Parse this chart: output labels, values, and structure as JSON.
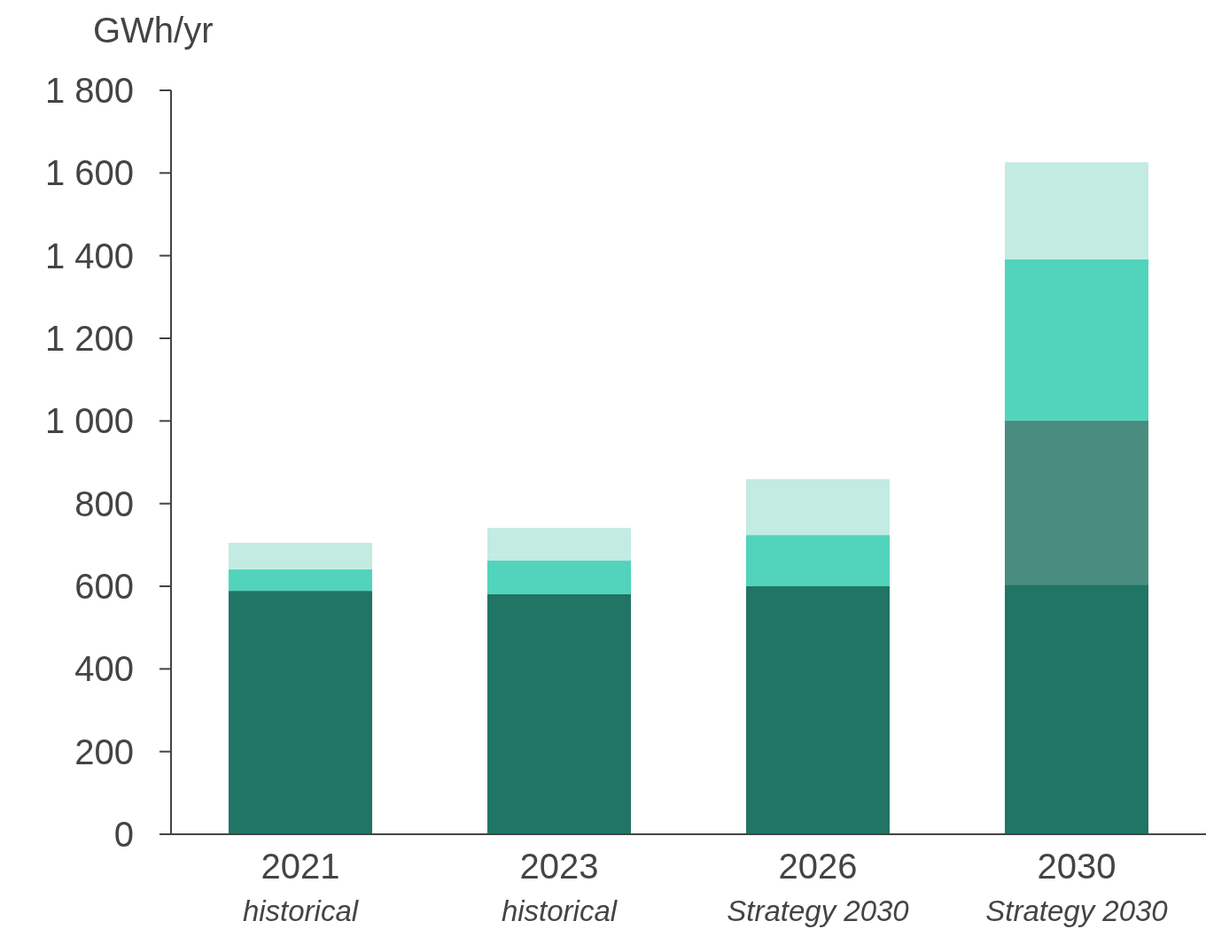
{
  "chart_data": {
    "type": "bar",
    "stacked": true,
    "ylabel": "GWh/yr",
    "categories": [
      "2021\nhistorical",
      "2023\nhistorical",
      "2026\nStrategy 2030",
      "2030\nStrategy 2030"
    ],
    "series": [
      {
        "color": "#207565",
        "values": [
          589,
          581,
          600,
          604
        ]
      },
      {
        "color": "#4a8d80",
        "values": [
          null,
          null,
          null,
          397
        ]
      },
      {
        "color": "#52d3bc",
        "values": [
          52,
          81,
          124,
          390
        ]
      },
      {
        "color": "#c2ebe1",
        "values": [
          64,
          79,
          135,
          235
        ]
      }
    ],
    "ylim": [
      0,
      1800
    ],
    "yticks": [
      0,
      200,
      400,
      600,
      800,
      {
        "value": 1000,
        "label": "1 000"
      },
      {
        "value": 1200,
        "label": "1 200"
      },
      {
        "value": 1400,
        "label": "1 400"
      },
      {
        "value": 1600,
        "label": "1 600"
      },
      {
        "value": 1800,
        "label": "1 800"
      }
    ],
    "grid": false
  }
}
